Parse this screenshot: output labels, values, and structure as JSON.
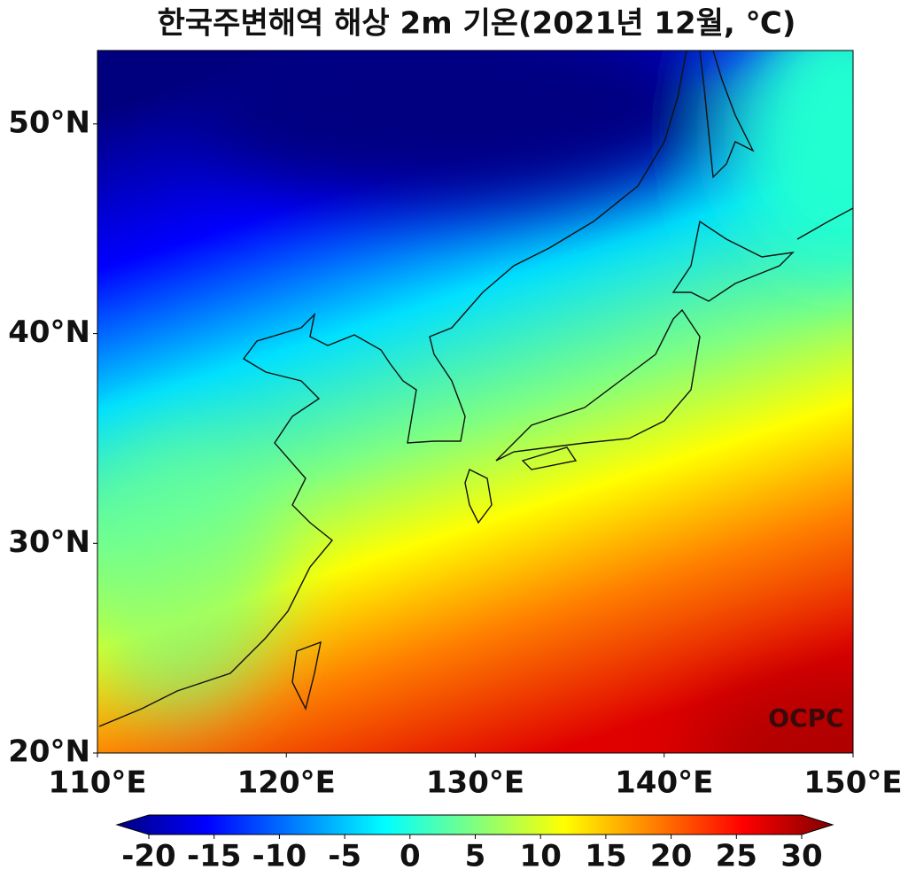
{
  "title": "한국주변해역 해상 2m 기온(2021년 12월, ℃)",
  "map": {
    "xlim": [
      110,
      150
    ],
    "ylim": [
      20,
      53.5
    ],
    "xticks": [
      {
        "value": 110,
        "label": "110°E"
      },
      {
        "value": 120,
        "label": "120°E"
      },
      {
        "value": 130,
        "label": "130°E"
      },
      {
        "value": 140,
        "label": "140°E"
      },
      {
        "value": 150,
        "label": "150°E"
      }
    ],
    "yticks": [
      {
        "value": 20,
        "label": "20°N"
      },
      {
        "value": 30,
        "label": "30°N"
      },
      {
        "value": 40,
        "label": "40°N"
      },
      {
        "value": 50,
        "label": "50°N"
      }
    ],
    "watermark": "OCPC"
  },
  "colorbar": {
    "colormap": "jet",
    "lim": [
      -20,
      30
    ],
    "ticks": [
      -20,
      -15,
      -10,
      -5,
      0,
      5,
      10,
      15,
      20,
      25,
      30
    ],
    "extend": "both"
  }
}
